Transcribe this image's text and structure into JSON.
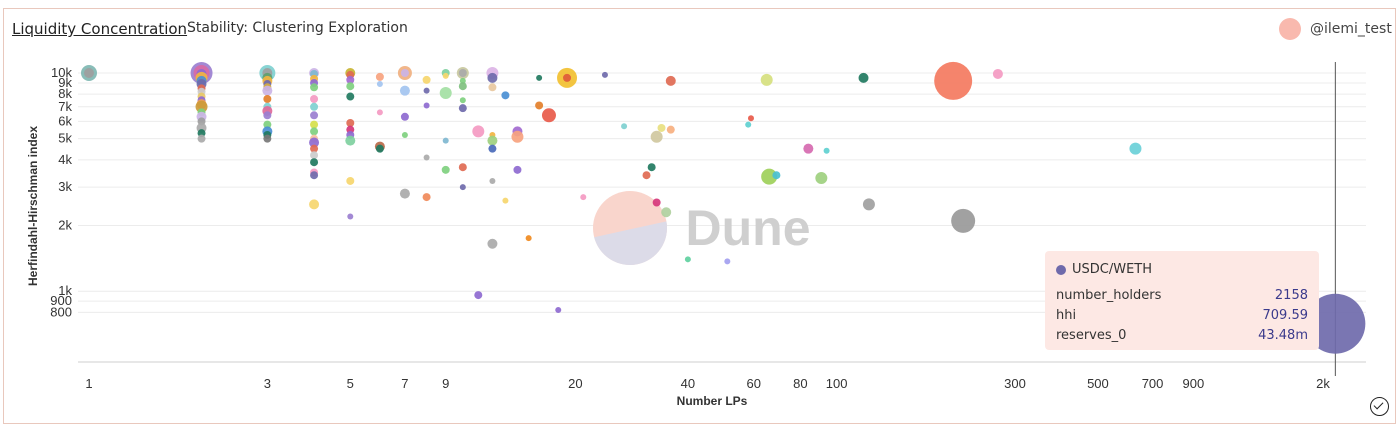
{
  "header": {
    "title": "Liquidity Concentration",
    "subtitle": "Stability: Clustering Exploration",
    "username": "@ilemi_test"
  },
  "watermark": "Dune",
  "colors": {
    "accent": "#3b3a8c",
    "tooltip_bg": "#fde8e4",
    "avatar": "#f9b9ae",
    "grid": "#ececec"
  },
  "tooltip": {
    "title": "USDC/WETH",
    "color": "#6f6aab",
    "rows": [
      {
        "label": "number_holders",
        "value": "2158"
      },
      {
        "label": "hhi",
        "value": "709.59"
      },
      {
        "label": "reserves_0",
        "value": "43.48m"
      }
    ]
  },
  "icons": {
    "confirm": "check-circle-icon"
  },
  "chart_data": {
    "type": "scatter",
    "title": "",
    "xlabel": "Number LPs",
    "ylabel": "Herfindahl-Hirschman index",
    "x_scale": "log",
    "y_scale": "log",
    "xlim": [
      1,
      2400
    ],
    "ylim": [
      600,
      11200
    ],
    "x_ticks": [
      {
        "v": 1,
        "label": "1"
      },
      {
        "v": 3,
        "label": "3"
      },
      {
        "v": 5,
        "label": "5"
      },
      {
        "v": 7,
        "label": "7"
      },
      {
        "v": 9,
        "label": "9"
      },
      {
        "v": 20,
        "label": "20"
      },
      {
        "v": 40,
        "label": "40"
      },
      {
        "v": 60,
        "label": "60"
      },
      {
        "v": 80,
        "label": "80"
      },
      {
        "v": 100,
        "label": "100"
      },
      {
        "v": 300,
        "label": "300"
      },
      {
        "v": 500,
        "label": "500"
      },
      {
        "v": 700,
        "label": "700"
      },
      {
        "v": 900,
        "label": "900"
      },
      {
        "v": 2000,
        "label": "2k"
      }
    ],
    "y_ticks": [
      {
        "v": 800,
        "label": "800"
      },
      {
        "v": 900,
        "label": "900"
      },
      {
        "v": 1000,
        "label": "1k"
      },
      {
        "v": 2000,
        "label": "2k"
      },
      {
        "v": 3000,
        "label": "3k"
      },
      {
        "v": 4000,
        "label": "4k"
      },
      {
        "v": 5000,
        "label": "5k"
      },
      {
        "v": 6000,
        "label": "6k"
      },
      {
        "v": 7000,
        "label": "7k"
      },
      {
        "v": 8000,
        "label": "8k"
      },
      {
        "v": 9000,
        "label": "9k"
      },
      {
        "v": 10000,
        "label": "10k"
      }
    ],
    "grid": true,
    "legend": "none",
    "size_encoding": "reserves_0",
    "crosshair_x": 2158,
    "points": [
      {
        "x": 1,
        "y": 10000,
        "r": 8,
        "c": "#7fb7b2"
      },
      {
        "x": 1,
        "y": 10000,
        "r": 5,
        "c": "#9e9e9e"
      },
      {
        "x": 2,
        "y": 10000,
        "r": 11,
        "c": "#9b7fd0"
      },
      {
        "x": 2,
        "y": 10000,
        "r": 8,
        "c": "#d86aa5"
      },
      {
        "x": 2,
        "y": 9900,
        "r": 5,
        "c": "#8e6ad0"
      },
      {
        "x": 2,
        "y": 9500,
        "r": 6,
        "c": "#f2b441"
      },
      {
        "x": 2,
        "y": 9200,
        "r": 5,
        "c": "#4a8fd4"
      },
      {
        "x": 2,
        "y": 8900,
        "r": 5,
        "c": "#6f6aab"
      },
      {
        "x": 2,
        "y": 8500,
        "r": 4,
        "c": "#e06a53"
      },
      {
        "x": 2,
        "y": 8200,
        "r": 4,
        "c": "#cccccc"
      },
      {
        "x": 2,
        "y": 7800,
        "r": 4,
        "c": "#e8c866"
      },
      {
        "x": 2,
        "y": 7500,
        "r": 4,
        "c": "#8e6ad0"
      },
      {
        "x": 2,
        "y": 7200,
        "r": 5,
        "c": "#f0a050"
      },
      {
        "x": 2,
        "y": 7000,
        "r": 6,
        "c": "#cc9b3a"
      },
      {
        "x": 2,
        "y": 6600,
        "r": 4,
        "c": "#7fd07f"
      },
      {
        "x": 2,
        "y": 6300,
        "r": 5,
        "c": "#cbb4e6"
      },
      {
        "x": 2,
        "y": 6000,
        "r": 4,
        "c": "#9e9e9e"
      },
      {
        "x": 2,
        "y": 5600,
        "r": 5,
        "c": "#aaaaaa"
      },
      {
        "x": 2,
        "y": 5300,
        "r": 4,
        "c": "#217a60"
      },
      {
        "x": 2,
        "y": 5000,
        "r": 4,
        "c": "#aaaaaa"
      },
      {
        "x": 3,
        "y": 10000,
        "r": 8,
        "c": "#7fd0d0"
      },
      {
        "x": 3,
        "y": 10000,
        "r": 5,
        "c": "#9e9e9e"
      },
      {
        "x": 3,
        "y": 9500,
        "r": 5,
        "c": "#5fa06f"
      },
      {
        "x": 3,
        "y": 9200,
        "r": 5,
        "c": "#f2b441"
      },
      {
        "x": 3,
        "y": 8900,
        "r": 4,
        "c": "#6f6aab"
      },
      {
        "x": 3,
        "y": 8600,
        "r": 4,
        "c": "#d6ae40"
      },
      {
        "x": 3,
        "y": 8300,
        "r": 5,
        "c": "#cbb4e6"
      },
      {
        "x": 3,
        "y": 7600,
        "r": 4,
        "c": "#e37f2a"
      },
      {
        "x": 3,
        "y": 7000,
        "r": 4,
        "c": "#7fd0d0"
      },
      {
        "x": 3,
        "y": 6700,
        "r": 5,
        "c": "#e06a9a"
      },
      {
        "x": 3,
        "y": 6400,
        "r": 4,
        "c": "#9b7fd0"
      },
      {
        "x": 3,
        "y": 5800,
        "r": 4,
        "c": "#7fd07f"
      },
      {
        "x": 3,
        "y": 5400,
        "r": 5,
        "c": "#4a8fd4"
      },
      {
        "x": 3,
        "y": 5200,
        "r": 4,
        "c": "#217a60"
      },
      {
        "x": 3,
        "y": 5000,
        "r": 4,
        "c": "#777777"
      },
      {
        "x": 4,
        "y": 10000,
        "r": 5,
        "c": "#cbb4e6"
      },
      {
        "x": 4,
        "y": 9900,
        "r": 4,
        "c": "#7fb7d0"
      },
      {
        "x": 4,
        "y": 9400,
        "r": 4,
        "c": "#f2b441"
      },
      {
        "x": 4,
        "y": 9000,
        "r": 4,
        "c": "#8e6ad0"
      },
      {
        "x": 4,
        "y": 8600,
        "r": 4,
        "c": "#7fd07f"
      },
      {
        "x": 4,
        "y": 7600,
        "r": 4,
        "c": "#f49ac2"
      },
      {
        "x": 4,
        "y": 7000,
        "r": 4,
        "c": "#7fd0d0"
      },
      {
        "x": 4,
        "y": 6400,
        "r": 4,
        "c": "#9b7fd0"
      },
      {
        "x": 4,
        "y": 5800,
        "r": 4,
        "c": "#d6e04a"
      },
      {
        "x": 4,
        "y": 5400,
        "r": 4,
        "c": "#7fd07f"
      },
      {
        "x": 4,
        "y": 5000,
        "r": 4,
        "c": "#f7c0a0"
      },
      {
        "x": 4,
        "y": 4800,
        "r": 5,
        "c": "#8e6ad0"
      },
      {
        "x": 4,
        "y": 4500,
        "r": 4,
        "c": "#e06a53"
      },
      {
        "x": 4,
        "y": 4200,
        "r": 4,
        "c": "#cccccc"
      },
      {
        "x": 4,
        "y": 3900,
        "r": 4,
        "c": "#217a60"
      },
      {
        "x": 4,
        "y": 3500,
        "r": 4,
        "c": "#f49ac2"
      },
      {
        "x": 4,
        "y": 3400,
        "r": 4,
        "c": "#6f6aab"
      },
      {
        "x": 4,
        "y": 2500,
        "r": 5,
        "c": "#f6d66e"
      },
      {
        "x": 5,
        "y": 10000,
        "r": 5,
        "c": "#c8b432"
      },
      {
        "x": 5,
        "y": 9800,
        "r": 4,
        "c": "#e06a53"
      },
      {
        "x": 5,
        "y": 9300,
        "r": 4,
        "c": "#a36ad0"
      },
      {
        "x": 5,
        "y": 8700,
        "r": 4,
        "c": "#7fd07f"
      },
      {
        "x": 5,
        "y": 7800,
        "r": 4,
        "c": "#217a60"
      },
      {
        "x": 5,
        "y": 5900,
        "r": 4,
        "c": "#e06a53"
      },
      {
        "x": 5,
        "y": 5500,
        "r": 4,
        "c": "#d6367a"
      },
      {
        "x": 5,
        "y": 5200,
        "r": 4,
        "c": "#8e6ad0"
      },
      {
        "x": 5,
        "y": 4900,
        "r": 5,
        "c": "#7fd0a0"
      },
      {
        "x": 5,
        "y": 3200,
        "r": 4,
        "c": "#f6d66e"
      },
      {
        "x": 5,
        "y": 2200,
        "r": 3,
        "c": "#9b7fd0"
      },
      {
        "x": 6,
        "y": 9600,
        "r": 4,
        "c": "#f7a37f"
      },
      {
        "x": 6,
        "y": 8900,
        "r": 3,
        "c": "#a3c4f0"
      },
      {
        "x": 6,
        "y": 6600,
        "r": 3,
        "c": "#f49ac2"
      },
      {
        "x": 6,
        "y": 4600,
        "r": 5,
        "c": "#bb6a4a"
      },
      {
        "x": 6,
        "y": 4500,
        "r": 4,
        "c": "#217a60"
      },
      {
        "x": 7,
        "y": 10000,
        "r": 7,
        "c": "#f0b080"
      },
      {
        "x": 7,
        "y": 10000,
        "r": 4,
        "c": "#cbb4e6"
      },
      {
        "x": 7,
        "y": 8300,
        "r": 5,
        "c": "#a3c4f0"
      },
      {
        "x": 7,
        "y": 6300,
        "r": 4,
        "c": "#8e6ad0"
      },
      {
        "x": 7,
        "y": 5200,
        "r": 3,
        "c": "#7fd07f"
      },
      {
        "x": 7,
        "y": 2800,
        "r": 5,
        "c": "#aaaaaa"
      },
      {
        "x": 8,
        "y": 9300,
        "r": 4,
        "c": "#f6d66e"
      },
      {
        "x": 8,
        "y": 8300,
        "r": 3,
        "c": "#6f6aab"
      },
      {
        "x": 8,
        "y": 7100,
        "r": 3,
        "c": "#8e6ad0"
      },
      {
        "x": 8,
        "y": 4100,
        "r": 3,
        "c": "#aaaaaa"
      },
      {
        "x": 8,
        "y": 2700,
        "r": 4,
        "c": "#f08a5a"
      },
      {
        "x": 9,
        "y": 10000,
        "r": 4,
        "c": "#7fd0a0"
      },
      {
        "x": 9,
        "y": 9700,
        "r": 3,
        "c": "#f6d66e"
      },
      {
        "x": 9,
        "y": 8100,
        "r": 6,
        "c": "#a3e0a3"
      },
      {
        "x": 9,
        "y": 4900,
        "r": 3,
        "c": "#7fb7d0"
      },
      {
        "x": 9,
        "y": 3600,
        "r": 4,
        "c": "#7fd07f"
      },
      {
        "x": 10,
        "y": 10000,
        "r": 6,
        "c": "#c8c8a0"
      },
      {
        "x": 10,
        "y": 10000,
        "r": 4,
        "c": "#aaaaaa"
      },
      {
        "x": 10,
        "y": 9200,
        "r": 3,
        "c": "#7fd07f"
      },
      {
        "x": 10,
        "y": 8700,
        "r": 4,
        "c": "#7fc07f"
      },
      {
        "x": 10,
        "y": 7500,
        "r": 3,
        "c": "#7fd07f"
      },
      {
        "x": 10,
        "y": 6900,
        "r": 4,
        "c": "#6f6aab"
      },
      {
        "x": 10,
        "y": 3700,
        "r": 4,
        "c": "#e06a53"
      },
      {
        "x": 10,
        "y": 3000,
        "r": 3,
        "c": "#6f6aab"
      },
      {
        "x": 11,
        "y": 5400,
        "r": 6,
        "c": "#f49ac2"
      },
      {
        "x": 11,
        "y": 960,
        "r": 4,
        "c": "#8e6ad0"
      },
      {
        "x": 12,
        "y": 10000,
        "r": 6,
        "c": "#dcb4e6"
      },
      {
        "x": 12,
        "y": 9500,
        "r": 5,
        "c": "#6f6aab"
      },
      {
        "x": 12,
        "y": 8600,
        "r": 4,
        "c": "#e8c8a0"
      },
      {
        "x": 12,
        "y": 5200,
        "r": 3,
        "c": "#f2b441"
      },
      {
        "x": 12,
        "y": 4900,
        "r": 5,
        "c": "#9ed07f"
      },
      {
        "x": 12,
        "y": 4500,
        "r": 4,
        "c": "#4a6aba"
      },
      {
        "x": 12,
        "y": 3200,
        "r": 3,
        "c": "#aaaaaa"
      },
      {
        "x": 12,
        "y": 1650,
        "r": 5,
        "c": "#aaaaaa"
      },
      {
        "x": 13,
        "y": 7900,
        "r": 4,
        "c": "#4a8fd4"
      },
      {
        "x": 13,
        "y": 2600,
        "r": 3,
        "c": "#f6d66e"
      },
      {
        "x": 14,
        "y": 5400,
        "r": 5,
        "c": "#a36ad0"
      },
      {
        "x": 14,
        "y": 5100,
        "r": 6,
        "c": "#f7a37f"
      },
      {
        "x": 14,
        "y": 3600,
        "r": 4,
        "c": "#8e6ad0"
      },
      {
        "x": 15,
        "y": 1750,
        "r": 3,
        "c": "#f08a20"
      },
      {
        "x": 16,
        "y": 9500,
        "r": 3,
        "c": "#217a60"
      },
      {
        "x": 16,
        "y": 7100,
        "r": 4,
        "c": "#e37f2a"
      },
      {
        "x": 17,
        "y": 6400,
        "r": 7,
        "c": "#e85a4a"
      },
      {
        "x": 18,
        "y": 820,
        "r": 3,
        "c": "#8e6ad0"
      },
      {
        "x": 19,
        "y": 9500,
        "r": 10,
        "c": "#f2c030"
      },
      {
        "x": 19,
        "y": 9500,
        "r": 4,
        "c": "#e05a3a"
      },
      {
        "x": 21,
        "y": 2700,
        "r": 3,
        "c": "#f49ac2"
      },
      {
        "x": 24,
        "y": 9800,
        "r": 3,
        "c": "#6f6aab"
      },
      {
        "x": 27,
        "y": 5700,
        "r": 3,
        "c": "#7fd0d0"
      },
      {
        "x": 28,
        "y": 2200,
        "r": 38,
        "c": "#fad2c8"
      },
      {
        "x": 31,
        "y": 3400,
        "r": 4,
        "c": "#e06a53"
      },
      {
        "x": 32,
        "y": 3700,
        "r": 4,
        "c": "#217a60"
      },
      {
        "x": 33,
        "y": 5100,
        "r": 6,
        "c": "#d0c8a0"
      },
      {
        "x": 33,
        "y": 2550,
        "r": 4,
        "c": "#d6367a"
      },
      {
        "x": 34,
        "y": 5600,
        "r": 4,
        "c": "#e8e080"
      },
      {
        "x": 35,
        "y": 2300,
        "r": 5,
        "c": "#b0d0a0"
      },
      {
        "x": 36,
        "y": 5500,
        "r": 4,
        "c": "#f7b080"
      },
      {
        "x": 36,
        "y": 9200,
        "r": 5,
        "c": "#e06a53"
      },
      {
        "x": 40,
        "y": 1400,
        "r": 3,
        "c": "#5fd0a0"
      },
      {
        "x": 51,
        "y": 1370,
        "r": 3,
        "c": "#a3a0f0"
      },
      {
        "x": 58,
        "y": 5800,
        "r": 3,
        "c": "#5fd0d0"
      },
      {
        "x": 59,
        "y": 6200,
        "r": 3,
        "c": "#e85a4a"
      },
      {
        "x": 65,
        "y": 9300,
        "r": 6,
        "c": "#d6e07f"
      },
      {
        "x": 66,
        "y": 3350,
        "r": 8,
        "c": "#9ed05a"
      },
      {
        "x": 69,
        "y": 3400,
        "r": 4,
        "c": "#4ac0d0"
      },
      {
        "x": 84,
        "y": 4500,
        "r": 5,
        "c": "#d66ab0"
      },
      {
        "x": 91,
        "y": 3300,
        "r": 6,
        "c": "#9ed07f"
      },
      {
        "x": 94,
        "y": 4400,
        "r": 3,
        "c": "#5fd0d0"
      },
      {
        "x": 118,
        "y": 9500,
        "r": 5,
        "c": "#217a60"
      },
      {
        "x": 122,
        "y": 2500,
        "r": 6,
        "c": "#a0a0a0"
      },
      {
        "x": 205,
        "y": 9200,
        "r": 19,
        "c": "#f47a5f"
      },
      {
        "x": 218,
        "y": 2100,
        "r": 12,
        "c": "#999999"
      },
      {
        "x": 270,
        "y": 9900,
        "r": 5,
        "c": "#f49ac2"
      },
      {
        "x": 630,
        "y": 4500,
        "r": 6,
        "c": "#6ad0d8"
      },
      {
        "x": 2158,
        "y": 709.59,
        "r": 30,
        "c": "#6f6aab"
      }
    ]
  }
}
